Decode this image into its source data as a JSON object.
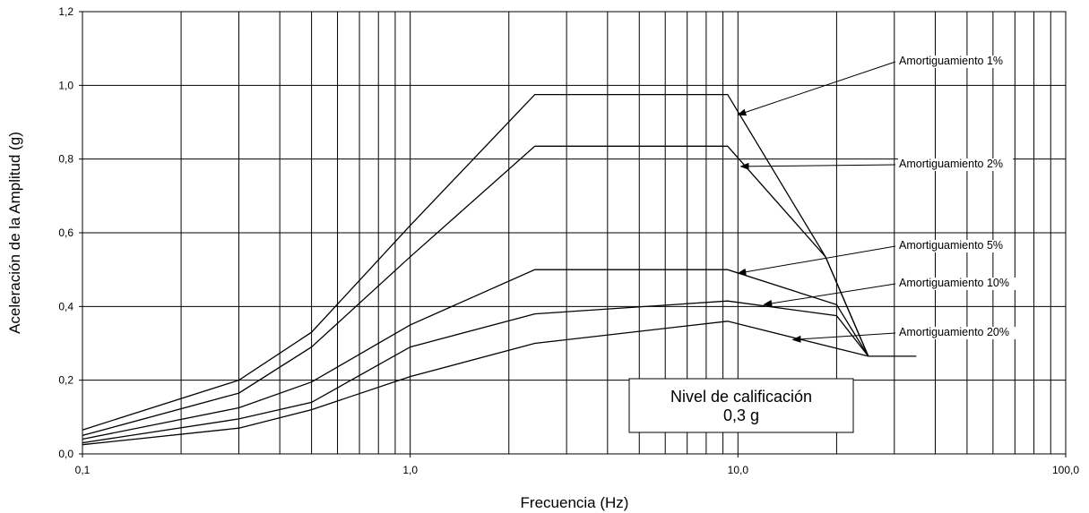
{
  "chart_data": {
    "type": "line",
    "xscale": "log",
    "xlim": [
      0.1,
      100
    ],
    "ylim": [
      0,
      1.2
    ],
    "xlabel": "Frecuencia (Hz)",
    "ylabel": "Aceleración de la Amplitud (g)",
    "xticks": [
      {
        "value": 0.1,
        "label": "0,1"
      },
      {
        "value": 1,
        "label": "1,0"
      },
      {
        "value": 10,
        "label": "10,0"
      },
      {
        "value": 100,
        "label": "100,0"
      }
    ],
    "yticks": [
      {
        "value": 0,
        "label": "0,0"
      },
      {
        "value": 0.2,
        "label": "0,2"
      },
      {
        "value": 0.4,
        "label": "0,4"
      },
      {
        "value": 0.6,
        "label": "0,6"
      },
      {
        "value": 0.8,
        "label": "0,8"
      },
      {
        "value": 1.0,
        "label": "1,0"
      },
      {
        "value": 1.2,
        "label": "1,2"
      }
    ],
    "grid": true,
    "series": [
      {
        "name": "Amortiguamiento 1%",
        "x": [
          0.1,
          0.3,
          0.5,
          1.0,
          2.4,
          9.3,
          18.5,
          25
        ],
        "y": [
          0.065,
          0.2,
          0.33,
          0.62,
          0.975,
          0.975,
          0.535,
          0.265
        ]
      },
      {
        "name": "Amortiguamiento 2%",
        "x": [
          0.1,
          0.3,
          0.5,
          1.0,
          2.4,
          9.3,
          18.5,
          25
        ],
        "y": [
          0.05,
          0.165,
          0.29,
          0.535,
          0.835,
          0.835,
          0.535,
          0.265
        ]
      },
      {
        "name": "Amortiguamiento 5%",
        "x": [
          0.1,
          0.3,
          0.5,
          1.0,
          2.4,
          9.3,
          20,
          25
        ],
        "y": [
          0.04,
          0.125,
          0.195,
          0.35,
          0.5,
          0.5,
          0.405,
          0.265
        ]
      },
      {
        "name": "Amortiguamiento 10%",
        "x": [
          0.1,
          0.3,
          0.5,
          1.0,
          2.4,
          9.3,
          20,
          25
        ],
        "y": [
          0.03,
          0.095,
          0.14,
          0.29,
          0.38,
          0.415,
          0.375,
          0.265
        ]
      },
      {
        "name": "Amortiguamiento 20%",
        "x": [
          0.1,
          0.3,
          0.5,
          1.0,
          2.4,
          9.3,
          25,
          35
        ],
        "y": [
          0.025,
          0.07,
          0.12,
          0.21,
          0.3,
          0.36,
          0.265,
          0.265
        ]
      }
    ],
    "annotations": [
      {
        "text": "Amortiguamiento 1%",
        "target": {
          "x": 10.0,
          "y": 0.92
        }
      },
      {
        "text": "Amortiguamiento 2%",
        "target": {
          "x": 10.2,
          "y": 0.78
        }
      },
      {
        "text": "Amortiguamiento 5%",
        "target": {
          "x": 10.0,
          "y": 0.49
        }
      },
      {
        "text": "Amortiguamiento 10%",
        "target": {
          "x": 12.0,
          "y": 0.405
        }
      },
      {
        "text": "Amortiguamiento 20%",
        "target": {
          "x": 14.7,
          "y": 0.31
        }
      }
    ],
    "qualification_box": {
      "line1": "Nivel de calificación",
      "line2": "0,3 g"
    }
  }
}
